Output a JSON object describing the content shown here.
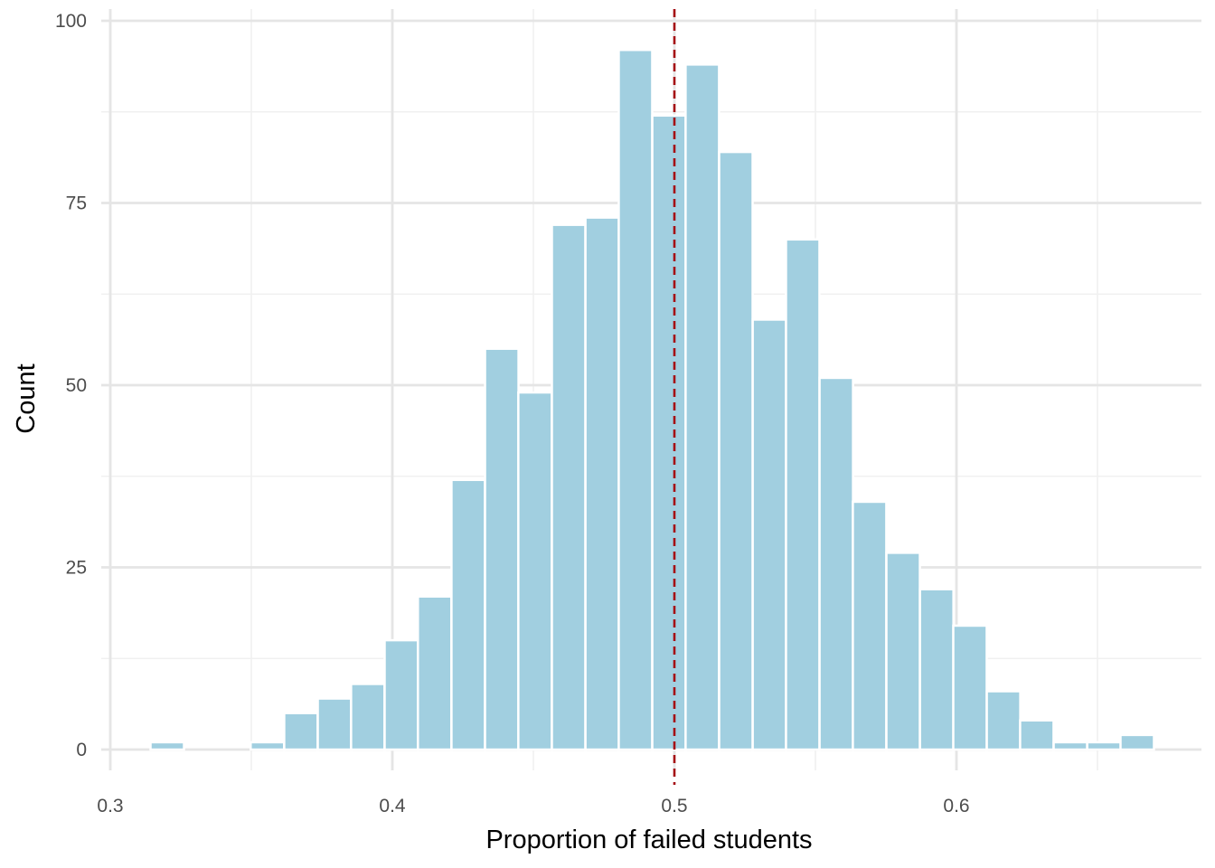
{
  "chart_data": {
    "type": "bar",
    "subtype": "histogram",
    "title": "",
    "xlabel": "Proportion of failed students",
    "ylabel": "Count",
    "xlim": [
      0.3,
      0.68
    ],
    "ylim": [
      0,
      101
    ],
    "x_ticks": [
      0.3,
      0.4,
      0.5,
      0.6
    ],
    "x_tick_labels": [
      "0.3",
      "0.4",
      "0.5",
      "0.6"
    ],
    "y_ticks": [
      0,
      25,
      50,
      75,
      100
    ],
    "y_tick_labels": [
      "0",
      "25",
      "50",
      "75",
      "100"
    ],
    "bin_width": 0.01186,
    "bin_centers": [
      0.3083,
      0.3202,
      0.332,
      0.3439,
      0.3557,
      0.3676,
      0.3795,
      0.3913,
      0.4032,
      0.415,
      0.4269,
      0.4388,
      0.4506,
      0.4625,
      0.4744,
      0.4862,
      0.4981,
      0.5099,
      0.5218,
      0.5337,
      0.5455,
      0.5574,
      0.5692,
      0.5811,
      0.593,
      0.6048,
      0.6167,
      0.6285,
      0.6404,
      0.6523,
      0.6641,
      0.676
    ],
    "counts": [
      0,
      1,
      0,
      0,
      1,
      5,
      7,
      9,
      15,
      21,
      37,
      55,
      49,
      72,
      73,
      96,
      87,
      94,
      82,
      59,
      70,
      51,
      34,
      27,
      22,
      17,
      8,
      4,
      1,
      1,
      2,
      0
    ],
    "reference_line": {
      "x": 0.5,
      "style": "dashed"
    },
    "grid": true,
    "legend": "none",
    "colors": {
      "bar_fill": "#a1cfe0",
      "bar_outline": "#ffffff",
      "reference_line": "#a50f15",
      "grid_major": "#e5e5e5",
      "grid_minor": "#f0f0f0",
      "tick_text": "#4d4d4d"
    }
  }
}
